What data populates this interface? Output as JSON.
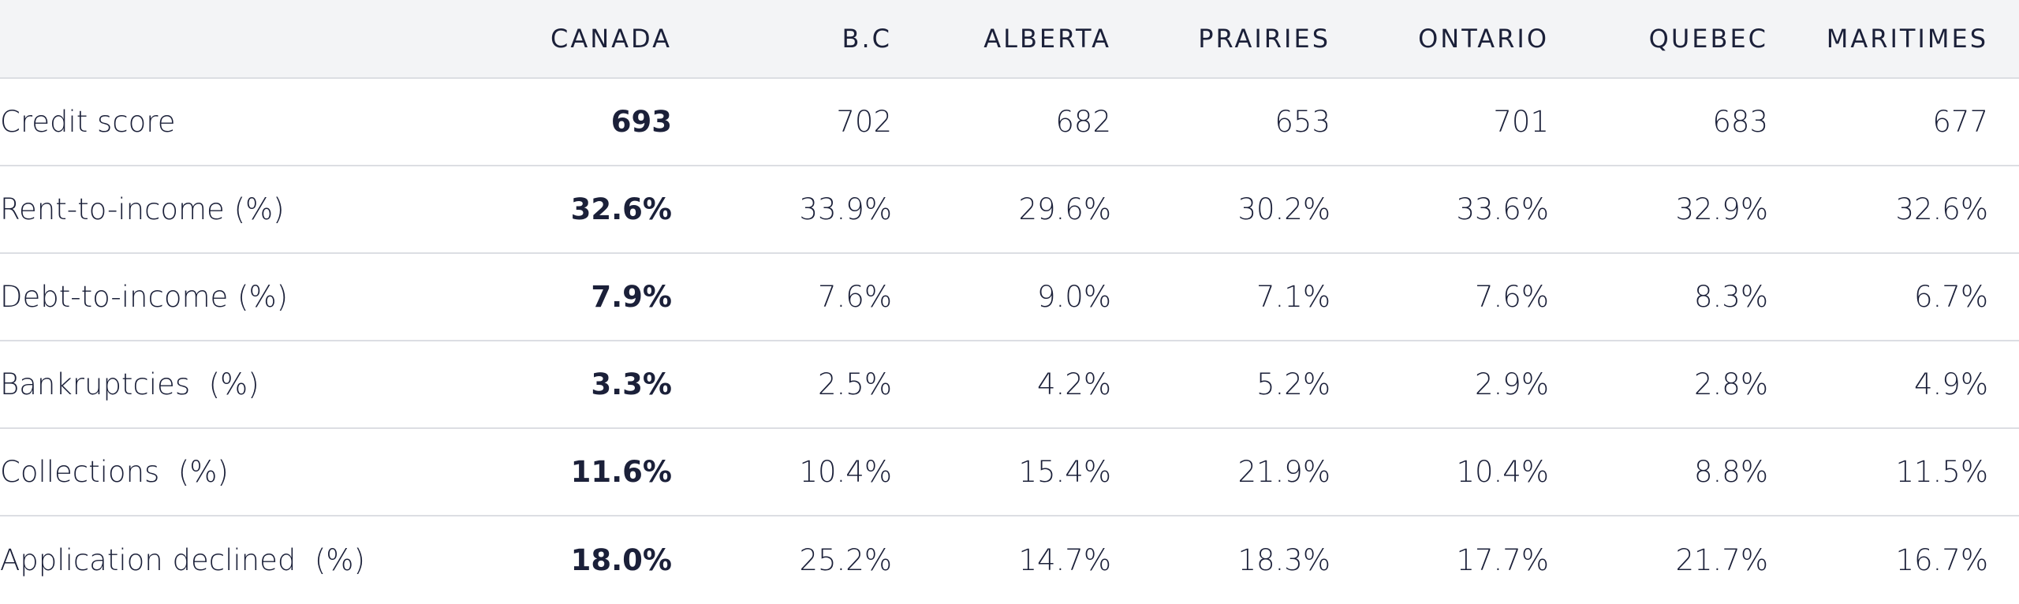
{
  "table": {
    "columns": [
      "CANADA",
      "B.C",
      "ALBERTA",
      "PRAIRIES",
      "ONTARIO",
      "QUEBEC",
      "MARITIMES"
    ],
    "rows": [
      {
        "label": "Credit score",
        "values": [
          "693",
          "702",
          "682",
          "653",
          "701",
          "683",
          "677"
        ]
      },
      {
        "label": "Rent-to-income (%)",
        "values": [
          "32.6%",
          "33.9%",
          "29.6%",
          "30.2%",
          "33.6%",
          "32.9%",
          "32.6%"
        ]
      },
      {
        "label": "Debt-to-income (%)",
        "values": [
          "7.9%",
          "7.6%",
          "9.0%",
          "7.1%",
          "7.6%",
          "8.3%",
          "6.7%"
        ]
      },
      {
        "label": "Bankruptcies  (%)",
        "values": [
          "3.3%",
          "2.5%",
          "4.2%",
          "5.2%",
          "2.9%",
          "2.8%",
          "4.9%"
        ]
      },
      {
        "label": "Collections  (%)",
        "values": [
          "11.6%",
          "10.4%",
          "15.4%",
          "21.9%",
          "10.4%",
          "8.8%",
          "11.5%"
        ]
      },
      {
        "label": "Application declined  (%)",
        "values": [
          "18.0%",
          "25.2%",
          "14.7%",
          "18.3%",
          "17.7%",
          "21.7%",
          "16.7%"
        ]
      }
    ]
  }
}
